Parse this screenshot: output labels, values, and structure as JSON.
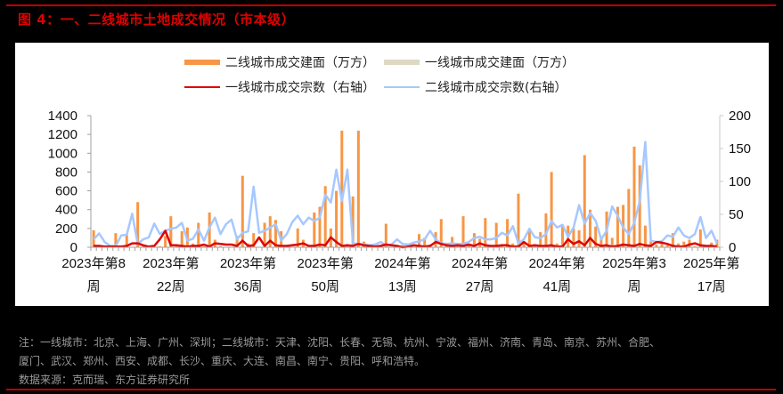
{
  "figure": {
    "title": "图 4：一、二线城市土地成交情况（市本级）",
    "note_lines": [
      "注：一线城市：北京、上海、广州、深圳；二线城市：天津、沈阳、长春、无锡、杭州、宁波、福州、济南、青岛、南京、苏州、合肥、",
      "厦门、武汉、郑州、西安、成都、长沙、重庆、大连、南昌、南宁、贵阳、呼和浩特。"
    ],
    "source": "数据来源：克而瑞、东方证券研究所"
  },
  "legend": [
    {
      "label": "二线城市成交建面（万方）",
      "type": "bar",
      "color": "#f79646"
    },
    {
      "label": "一线城市成交建面（万方）",
      "type": "bar",
      "color": "#ddd9c3"
    },
    {
      "label": "一线城市成交宗数（右轴）",
      "type": "line",
      "color": "#e00000"
    },
    {
      "label": "二线城市成交宗数(右轴）",
      "type": "line",
      "color": "#a6c8ff"
    }
  ],
  "chart_data": {
    "type": "bar+line",
    "title": "一、二线城市土地成交情况（市本级）",
    "xlabel": "",
    "ylabel": "成交建面（万方）",
    "y2label": "成交宗数",
    "ylim": [
      0,
      1400
    ],
    "y2lim": [
      0,
      200
    ],
    "yticks": [
      0,
      200,
      400,
      600,
      800,
      1000,
      1200,
      1400
    ],
    "y2ticks": [
      0,
      50,
      100,
      150,
      200
    ],
    "grid": false,
    "legend_position": "top",
    "x_tick_labels": [
      [
        "2023年第8",
        "周"
      ],
      [
        "2023年第",
        "22周"
      ],
      [
        "2023年第",
        "36周"
      ],
      [
        "2023年第",
        "50周"
      ],
      [
        "2024年第",
        "13周"
      ],
      [
        "2024年第",
        "27周"
      ],
      [
        "2024年第",
        "41周"
      ],
      [
        "2025年第3",
        "周"
      ],
      [
        "2025年第",
        "17周"
      ]
    ],
    "x_tick_index": [
      0,
      14,
      28,
      42,
      56,
      70,
      84,
      98,
      112
    ],
    "n_weeks": 114,
    "series": [
      {
        "name": "二线城市成交建面（万方）",
        "kind": "bar",
        "axis": "left",
        "values": [
          180,
          20,
          0,
          0,
          150,
          0,
          140,
          0,
          480,
          10,
          0,
          0,
          10,
          120,
          330,
          10,
          170,
          210,
          40,
          260,
          10,
          370,
          80,
          10,
          0,
          0,
          120,
          760,
          40,
          150,
          0,
          260,
          330,
          290,
          170,
          0,
          0,
          200,
          80,
          0,
          370,
          430,
          650,
          200,
          600,
          1240,
          10,
          540,
          1240,
          60,
          10,
          10,
          0,
          250,
          0,
          10,
          20,
          0,
          0,
          140,
          100,
          30,
          160,
          300,
          40,
          110,
          10,
          330,
          20,
          150,
          90,
          310,
          10,
          260,
          10,
          300,
          40,
          570,
          50,
          200,
          20,
          160,
          360,
          800,
          40,
          230,
          230,
          200,
          180,
          980,
          400,
          220,
          100,
          380,
          100,
          430,
          450,
          620,
          1070,
          870,
          230,
          60,
          30,
          40,
          20,
          150,
          40,
          60,
          80,
          10,
          190,
          20,
          50,
          80
        ],
        "color": "#f79646"
      },
      {
        "name": "一线城市成交建面（万方）",
        "kind": "bar",
        "axis": "left",
        "values": [
          0,
          0,
          0,
          0,
          0,
          0,
          0,
          0,
          20,
          0,
          0,
          0,
          0,
          0,
          280,
          0,
          0,
          0,
          0,
          0,
          0,
          0,
          0,
          0,
          0,
          0,
          0,
          0,
          0,
          0,
          0,
          0,
          0,
          0,
          0,
          0,
          0,
          0,
          0,
          0,
          0,
          0,
          0,
          0,
          0,
          0,
          0,
          0,
          0,
          0,
          0,
          0,
          0,
          0,
          0,
          0,
          0,
          0,
          0,
          0,
          0,
          0,
          0,
          0,
          0,
          0,
          0,
          0,
          0,
          0,
          0,
          0,
          0,
          0,
          0,
          0,
          0,
          0,
          0,
          0,
          0,
          0,
          0,
          0,
          0,
          0,
          0,
          0,
          0,
          0,
          0,
          0,
          0,
          0,
          0,
          0,
          0,
          0,
          0,
          0,
          0,
          0,
          0,
          0,
          0,
          0,
          0,
          0,
          0,
          0,
          0,
          0,
          0,
          0
        ],
        "color": "#ddd9c3"
      },
      {
        "name": "一线城市成交宗数（右轴）",
        "kind": "line",
        "axis": "right",
        "values": [
          2,
          2,
          1,
          1,
          1,
          1,
          2,
          6,
          6,
          3,
          1,
          2,
          12,
          25,
          3,
          3,
          2,
          1,
          2,
          2,
          4,
          1,
          6,
          5,
          4,
          4,
          2,
          10,
          2,
          3,
          15,
          2,
          10,
          3,
          2,
          2,
          3,
          4,
          6,
          2,
          2,
          4,
          3,
          15,
          8,
          2,
          3,
          2,
          5,
          3,
          2,
          1,
          2,
          4,
          3,
          2,
          0,
          1,
          3,
          2,
          1,
          2,
          8,
          5,
          3,
          2,
          3,
          2,
          4,
          2,
          6,
          3,
          2,
          2,
          3,
          3,
          1,
          1,
          8,
          2,
          3,
          2,
          2,
          3,
          1,
          1,
          12,
          5,
          9,
          3,
          14,
          5,
          2,
          3,
          1,
          2,
          4,
          3,
          2,
          5,
          3,
          2,
          8,
          7,
          5,
          2,
          1,
          1,
          4,
          6,
          3,
          2,
          2,
          1
        ],
        "color": "#e00000"
      },
      {
        "name": "二线城市成交宗数(右轴）",
        "kind": "line",
        "axis": "right",
        "values": [
          12,
          21,
          8,
          2,
          2,
          18,
          19,
          51,
          5,
          12,
          15,
          36,
          20,
          25,
          28,
          30,
          37,
          10,
          13,
          27,
          10,
          30,
          45,
          20,
          35,
          42,
          12,
          22,
          24,
          92,
          22,
          25,
          30,
          35,
          10,
          20,
          38,
          48,
          35,
          45,
          40,
          45,
          80,
          68,
          118,
          70,
          118,
          6,
          5,
          5,
          3,
          4,
          8,
          3,
          4,
          12,
          5,
          4,
          7,
          9,
          12,
          25,
          12,
          6,
          5,
          6,
          5,
          5,
          8,
          14,
          16,
          12,
          12,
          14,
          22,
          18,
          32,
          6,
          12,
          28,
          15,
          14,
          20,
          40,
          30,
          34,
          16,
          30,
          64,
          36,
          52,
          40,
          12,
          25,
          62,
          48,
          30,
          20,
          37,
          70,
          160,
          10,
          8,
          9,
          18,
          16,
          30,
          18,
          14,
          20,
          46,
          14,
          25,
          6
        ],
        "color": "#a6c8ff"
      }
    ]
  }
}
